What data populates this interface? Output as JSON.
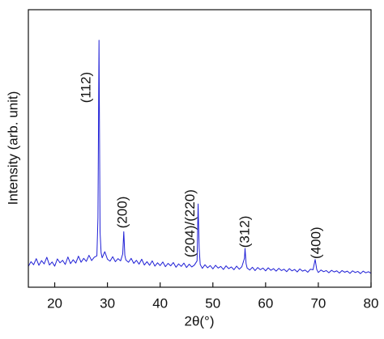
{
  "chart_data": {
    "type": "line",
    "x_label": "2θ(°)",
    "y_label": "Intensity (arb. unit)",
    "color": "#1f1fd6",
    "x": [
      15,
      15.5,
      16,
      16.5,
      17,
      17.5,
      18,
      18.5,
      19,
      19.5,
      20,
      20.5,
      21,
      21.5,
      22,
      22.5,
      23,
      23.5,
      24,
      24.5,
      25,
      25.5,
      26,
      26.5,
      27,
      27.5,
      28,
      28.2,
      28.4,
      28.6,
      28.8,
      29,
      29.5,
      30,
      30.5,
      31,
      31.5,
      32,
      32.5,
      32.9,
      33.1,
      33.3,
      33.5,
      34,
      34.5,
      35,
      35.5,
      36,
      36.5,
      37,
      37.5,
      38,
      38.5,
      39,
      39.5,
      40,
      40.5,
      41,
      41.5,
      42,
      42.5,
      43,
      43.5,
      44,
      44.5,
      45,
      45.5,
      46,
      46.5,
      47,
      47.2,
      47.4,
      47.6,
      48,
      48.5,
      49,
      49.5,
      50,
      50.5,
      51,
      51.5,
      52,
      52.5,
      53,
      53.5,
      54,
      54.5,
      55,
      55.5,
      56,
      56.1,
      56.3,
      56.5,
      57,
      57.5,
      58,
      58.5,
      59,
      59.5,
      60,
      60.5,
      61,
      61.5,
      62,
      62.5,
      63,
      63.5,
      64,
      64.5,
      65,
      65.5,
      66,
      66.5,
      67,
      67.5,
      68,
      68.5,
      69,
      69.4,
      69.7,
      70,
      70.5,
      71,
      71.5,
      72,
      72.5,
      73,
      73.5,
      74,
      74.5,
      75,
      75.5,
      76,
      76.5,
      77,
      77.5,
      78,
      78.5,
      79,
      79.5,
      80
    ],
    "values": [
      7.5,
      9.2,
      8.1,
      10.3,
      7.9,
      9.6,
      8.4,
      10.8,
      8.0,
      9.1,
      7.6,
      10.2,
      8.8,
      9.7,
      8.2,
      10.9,
      8.5,
      9.9,
      8.7,
      11.2,
      9.0,
      10.4,
      9.3,
      11.5,
      9.6,
      10.8,
      11.3,
      25,
      89,
      20,
      12.4,
      10.6,
      12.8,
      10.1,
      9.4,
      11.0,
      9.2,
      10.3,
      9.5,
      12,
      20,
      11.5,
      9.8,
      9.0,
      10.4,
      8.6,
      9.7,
      8.3,
      10.1,
      8.0,
      9.2,
      7.9,
      9.5,
      7.6,
      8.8,
      7.8,
      9.1,
      7.4,
      8.6,
      7.7,
      8.9,
      7.2,
      8.4,
      7.5,
      8.7,
      7.1,
      8.3,
      7.3,
      8.0,
      9.5,
      30,
      14,
      8.2,
      6.8,
      8.1,
      7.0,
      7.8,
      6.6,
      7.9,
      6.9,
      7.5,
      6.4,
      7.7,
      6.7,
      7.3,
      6.3,
      7.6,
      6.5,
      7.4,
      10.5,
      14,
      8.5,
      6.9,
      6.2,
      7.2,
      6.0,
      7.1,
      6.3,
      6.9,
      5.9,
      7.0,
      6.1,
      6.7,
      5.8,
      6.8,
      6.0,
      6.5,
      5.6,
      6.7,
      5.9,
      6.4,
      5.5,
      6.6,
      5.8,
      6.2,
      5.4,
      6.5,
      6.3,
      10,
      6.4,
      5.3,
      6.2,
      5.6,
      6.0,
      5.2,
      6.1,
      5.5,
      5.9,
      5.1,
      6.0,
      5.4,
      5.8,
      5.0,
      5.9,
      5.3,
      5.7,
      4.9,
      5.8,
      5.2,
      5.6,
      5.0
    ],
    "xlim": [
      15,
      80
    ],
    "xticks": [
      20,
      30,
      40,
      50,
      60,
      70,
      80
    ],
    "ylim": [
      0,
      100
    ],
    "annotations": [
      {
        "text": "(112)",
        "x": 26.1,
        "y": 72
      },
      {
        "text": "(200)",
        "x": 33.0,
        "y": 27
      },
      {
        "text": "(204)/(220)",
        "x": 45.8,
        "y": 23
      },
      {
        "text": "(312)",
        "x": 56.2,
        "y": 20
      },
      {
        "text": "(400)",
        "x": 69.7,
        "y": 16
      }
    ]
  }
}
